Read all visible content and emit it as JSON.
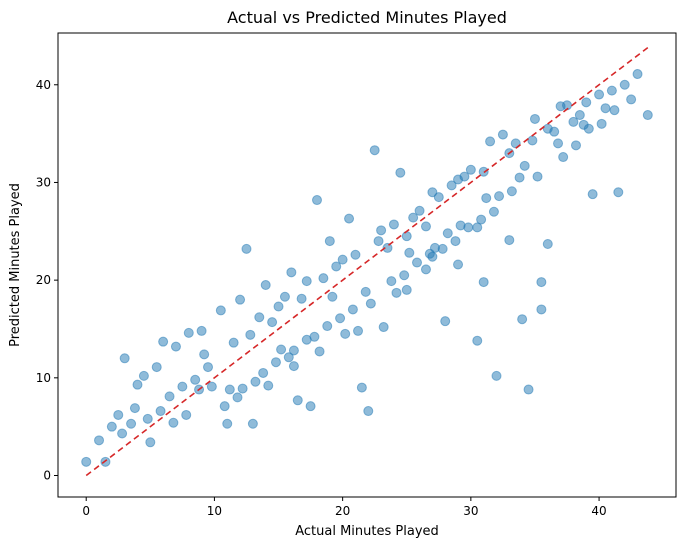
{
  "chart_data": {
    "type": "scatter",
    "title": "Actual vs Predicted Minutes Played",
    "xlabel": "Actual Minutes Played",
    "ylabel": "Predicted Minutes Played",
    "xlim": [
      -2.2,
      46.0
    ],
    "ylim": [
      -2.2,
      45.3
    ],
    "xticks": [
      0,
      10,
      20,
      30,
      40
    ],
    "yticks": [
      0,
      10,
      20,
      30,
      40
    ],
    "grid": false,
    "legend": "none",
    "colors": {
      "points": "#1f77b4",
      "reference_line": "#d62728"
    },
    "reference_line": {
      "name": "y = x",
      "from": [
        0,
        0
      ],
      "to": [
        43.8,
        43.8
      ],
      "style": "dashed"
    },
    "series": [
      {
        "x": [
          0.0,
          1.0,
          1.5,
          2.0,
          2.5,
          3.0,
          5.0,
          12.5,
          22.0,
          32.0,
          34.5,
          34.0,
          35.5,
          39.5,
          41.5,
          43.8,
          42.5,
          17.5,
          16.5,
          21.5,
          13.0,
          11.0,
          28.0,
          30.5,
          22.5,
          24.5,
          18.0,
          20.5,
          19.0,
          14.0,
          15.5,
          36.0,
          31.5,
          33.0,
          32.5,
          37.5,
          38.0,
          29.0,
          27.0,
          25.5,
          23.0,
          16.0,
          12.0,
          10.5,
          9.0,
          8.0,
          7.0,
          6.0,
          5.5,
          4.5,
          4.0,
          3.5,
          6.5,
          7.5,
          8.5,
          9.5,
          11.5,
          12.8,
          13.5,
          14.5,
          15.0,
          16.8,
          17.2,
          18.5,
          19.5,
          20.0,
          21.0,
          22.8,
          23.5,
          24.0,
          25.0,
          26.0,
          26.5,
          27.5,
          28.5,
          29.5,
          30.0,
          31.0,
          33.5,
          34.8,
          35.0,
          36.5,
          37.0,
          38.5,
          39.0,
          40.0,
          40.5,
          41.0,
          42.0,
          43.0,
          38.8,
          36.8,
          33.8,
          31.8,
          30.8,
          29.8,
          28.8,
          27.8,
          26.8,
          25.8,
          24.8,
          23.8,
          22.2,
          21.8,
          20.8,
          19.8,
          18.8,
          17.8,
          16.2,
          15.8,
          14.8,
          13.8,
          12.2,
          11.8,
          10.8,
          9.8,
          8.8,
          7.8,
          6.8,
          5.8,
          4.8,
          3.8,
          2.8,
          26.5,
          31.0,
          35.5,
          33.0,
          29.0,
          36.0,
          25.0,
          27.0,
          30.5,
          32.2,
          24.2,
          20.2,
          18.2,
          16.2,
          14.2,
          21.2,
          23.2,
          17.2,
          15.2,
          13.2,
          11.2,
          9.2,
          19.2,
          28.2,
          34.2,
          37.2,
          39.2,
          40.2,
          41.2,
          38.2,
          35.2,
          33.2,
          31.2,
          29.2,
          27.2,
          25.2
        ],
        "y": [
          1.4,
          3.6,
          1.4,
          5.0,
          6.2,
          12.0,
          3.4,
          23.2,
          6.6,
          10.2,
          8.8,
          16.0,
          17.0,
          28.8,
          29.0,
          36.9,
          38.5,
          7.1,
          7.7,
          9.0,
          5.3,
          5.3,
          15.8,
          13.8,
          33.3,
          31.0,
          28.2,
          26.3,
          24.0,
          19.5,
          18.3,
          35.5,
          34.2,
          33.0,
          34.9,
          37.9,
          36.2,
          30.3,
          29.0,
          26.4,
          25.1,
          20.8,
          18.0,
          16.9,
          14.8,
          14.6,
          13.2,
          13.7,
          11.1,
          10.2,
          9.3,
          5.3,
          8.1,
          9.1,
          9.8,
          11.1,
          13.6,
          14.4,
          16.2,
          15.7,
          17.3,
          18.1,
          19.9,
          20.2,
          21.4,
          22.1,
          22.6,
          24.0,
          23.3,
          25.7,
          24.5,
          27.1,
          25.5,
          28.5,
          29.7,
          30.6,
          31.3,
          31.1,
          34.0,
          34.3,
          36.5,
          35.2,
          37.8,
          36.9,
          38.2,
          39.0,
          37.6,
          39.4,
          40.0,
          41.1,
          35.9,
          34.0,
          30.5,
          27.0,
          26.2,
          25.4,
          24.0,
          23.2,
          22.7,
          21.8,
          20.5,
          19.9,
          17.6,
          18.8,
          17.0,
          16.1,
          15.3,
          14.2,
          12.8,
          12.1,
          11.6,
          10.5,
          8.9,
          8.0,
          7.1,
          9.1,
          8.8,
          6.2,
          5.4,
          6.6,
          5.8,
          6.9,
          4.3,
          21.1,
          19.8,
          19.8,
          24.1,
          21.6,
          23.7,
          19.0,
          22.4,
          25.4,
          28.6,
          18.7,
          14.5,
          12.7,
          11.2,
          9.2,
          14.8,
          15.2,
          13.9,
          12.9,
          9.6,
          8.8,
          12.4,
          18.3,
          24.8,
          31.7,
          32.6,
          35.5,
          36.0,
          37.4,
          33.8,
          30.6,
          29.1,
          28.4,
          25.6,
          23.3,
          22.8
        ]
      }
    ]
  }
}
